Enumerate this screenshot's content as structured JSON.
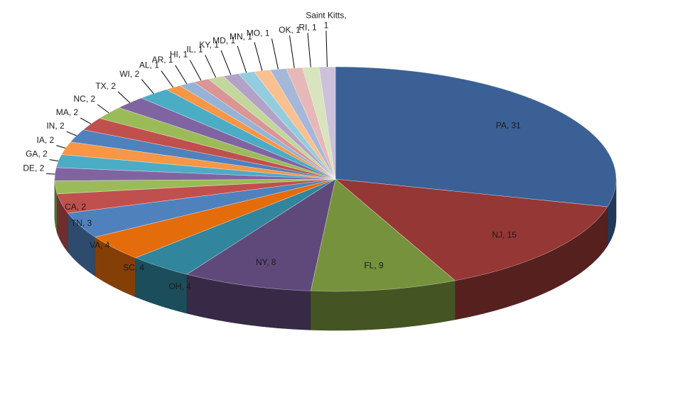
{
  "chart_data": {
    "type": "pie",
    "style": "3d",
    "title": "",
    "legend": "none",
    "categories": [
      "PA",
      "NJ",
      "FL",
      "NY",
      "OH",
      "SC",
      "VA",
      "TN",
      "CA",
      "DE",
      "GA",
      "IA",
      "IN",
      "MA",
      "NC",
      "TX",
      "WI",
      "AL",
      "AR",
      "HI",
      "IL",
      "KY",
      "MD",
      "MN",
      "MO",
      "OK",
      "RI",
      "Saint Kitts"
    ],
    "values": [
      31,
      15,
      9,
      8,
      4,
      4,
      4,
      3,
      2,
      2,
      2,
      2,
      2,
      2,
      2,
      2,
      2,
      1,
      1,
      1,
      1,
      1,
      1,
      1,
      1,
      1,
      1,
      1
    ],
    "labels": [
      "PA, 31",
      "NJ, 15",
      "FL, 9",
      "NY, 8",
      "OH, 4",
      "SC, 4",
      "VA, 4",
      "TN, 3",
      "CA, 2",
      "DE, 2",
      "GA, 2",
      "IA, 2",
      "IN, 2",
      "MA, 2",
      "NC, 2",
      "TX, 2",
      "WI, 2",
      "AL, 1",
      "AR, 1",
      "HI, 1",
      "IL, 1",
      "KY, 1",
      "MD, 1",
      "MN, 1",
      "MO, 1",
      "OK, 1",
      "RI, 1",
      "Saint Kitts, 1"
    ],
    "colors": [
      "#3B6095",
      "#953735",
      "#76923C",
      "#5F497A",
      "#31859C",
      "#E46C0A",
      "#4F81BD",
      "#C0504D",
      "#9BBB59",
      "#8064A2",
      "#4BACC6",
      "#F79646",
      "#4F81BD",
      "#C0504D",
      "#9BBB59",
      "#8064A2",
      "#4BACC6",
      "#F79646",
      "#95B3D7",
      "#D99694",
      "#C3D69B",
      "#B3A2C7",
      "#93CDDD",
      "#FAC090",
      "#A6B8D9",
      "#E6B9B8",
      "#D7E4BD",
      "#CCC1DA"
    ]
  }
}
